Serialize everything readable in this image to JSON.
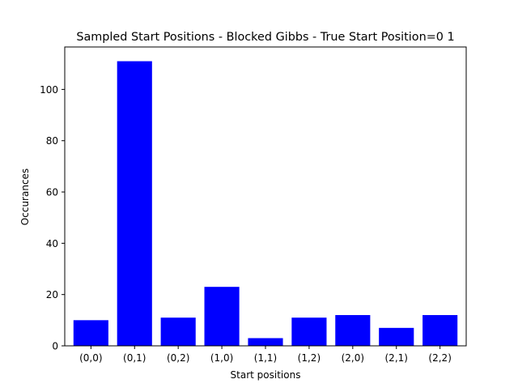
{
  "chart_data": {
    "type": "bar",
    "title": "Sampled Start Positions - Blocked Gibbs - True Start Position=0 1",
    "xlabel": "Start positions",
    "ylabel": "Occurances",
    "categories": [
      "(0,0)",
      "(0,1)",
      "(0,2)",
      "(1,0)",
      "(1,1)",
      "(1,2)",
      "(2,0)",
      "(2,1)",
      "(2,2)"
    ],
    "values": [
      10,
      111,
      11,
      23,
      3,
      11,
      12,
      7,
      12
    ],
    "ylim": [
      0,
      116.55
    ],
    "yticks": [
      0,
      20,
      40,
      60,
      80,
      100
    ],
    "grid": false,
    "bar_color": "#0000ff"
  }
}
